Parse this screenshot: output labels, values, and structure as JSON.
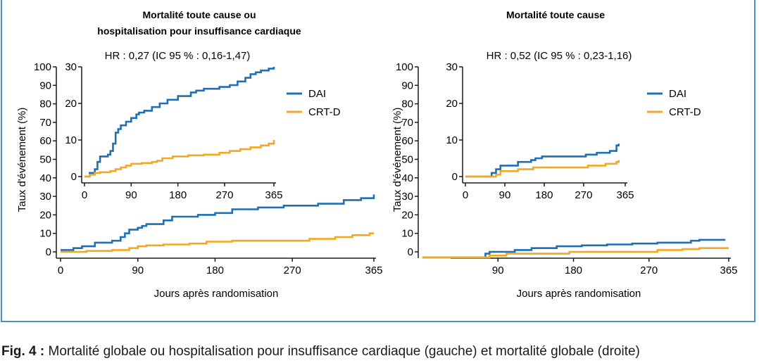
{
  "figure": {
    "caption_label": "Fig. 4 :",
    "caption_text": " Mortalité globale ou hospitalisation pour insuffisance cardiaque (gauche) et mortalité globale (droite)",
    "colors": {
      "DAI": "#1f6fb5",
      "CRT-D": "#f5a623",
      "frame": "#4a90c8"
    }
  },
  "chart_data": [
    {
      "type": "line",
      "step": true,
      "title": "Mortalité toute cause ou\nhospitalisation pour insuffisance cardiaque",
      "xlabel": "Jours après randomisation",
      "ylabel": "Taux d'événement (%)",
      "xlim": [
        0,
        365
      ],
      "ylim": [
        0,
        100
      ],
      "xticks": [
        0,
        90,
        180,
        270,
        365
      ],
      "yticks": [
        0,
        10,
        20,
        30,
        40,
        50,
        60,
        70,
        80,
        90,
        100
      ],
      "legend": [
        {
          "name": "DAI",
          "color": "#1f6fb5"
        },
        {
          "name": "CRT-D",
          "color": "#f5a623"
        }
      ],
      "series": [
        {
          "name": "DAI",
          "color": "#1f6fb5",
          "x": [
            0,
            15,
            25,
            40,
            60,
            70,
            75,
            80,
            90,
            95,
            100,
            120,
            130,
            140,
            160,
            180,
            200,
            230,
            260,
            300,
            330,
            350,
            365
          ],
          "y": [
            1,
            2,
            3,
            5,
            6,
            8,
            10,
            12,
            13,
            14,
            15,
            17,
            19,
            19,
            20,
            21,
            23,
            24,
            25,
            26,
            28,
            29,
            31
          ]
        },
        {
          "name": "CRT-D",
          "color": "#f5a623",
          "x": [
            0,
            30,
            60,
            80,
            90,
            100,
            120,
            150,
            170,
            200,
            250,
            290,
            320,
            340,
            360,
            365
          ],
          "y": [
            0,
            0.5,
            1,
            2,
            3,
            3.5,
            4,
            4.5,
            5.5,
            6,
            6,
            7,
            8,
            9,
            10,
            10
          ]
        }
      ],
      "inset": {
        "annotation": "HR : 0,27 (IC 95 % : 0,16-1,47)",
        "xlim": [
          0,
          365
        ],
        "ylim": [
          0,
          30
        ],
        "xticks": [
          0,
          90,
          180,
          270,
          365
        ],
        "yticks": [
          0,
          10,
          20,
          30
        ],
        "series": [
          {
            "name": "DAI",
            "color": "#1f6fb5",
            "x": [
              0,
              10,
              20,
              25,
              30,
              45,
              50,
              55,
              60,
              65,
              70,
              80,
              90,
              100,
              105,
              115,
              130,
              145,
              160,
              180,
              205,
              215,
              230,
              260,
              280,
              295,
              310,
              320,
              330,
              340,
              355,
              365
            ],
            "y": [
              0,
              1,
              2,
              4,
              5.5,
              6,
              7,
              9,
              12,
              13,
              14,
              15,
              16,
              17,
              17.5,
              18,
              19,
              20,
              21,
              22,
              23,
              23.5,
              24,
              24.5,
              25,
              26,
              27,
              28,
              28.5,
              29,
              29.5,
              30
            ]
          },
          {
            "name": "CRT-D",
            "color": "#f5a623",
            "x": [
              0,
              10,
              20,
              30,
              50,
              60,
              70,
              80,
              90,
              110,
              130,
              140,
              150,
              170,
              200,
              230,
              260,
              280,
              300,
              320,
              340,
              355,
              365
            ],
            "y": [
              0,
              0.5,
              1,
              1.2,
              1.5,
              2,
              2.5,
              3,
              3.5,
              3.7,
              4,
              4.3,
              5,
              5.5,
              5.8,
              6,
              6.5,
              7,
              7.5,
              8,
              8.5,
              9,
              10
            ]
          }
        ]
      }
    },
    {
      "type": "line",
      "step": true,
      "title": "Mortalité toute cause",
      "xlabel": "Jours après randomisation",
      "ylabel": "Taux d'événement (%)",
      "xlim": [
        0,
        365
      ],
      "ylim": [
        0,
        100
      ],
      "xticks": [
        90,
        180,
        270,
        365
      ],
      "yticks": [
        0,
        10,
        20,
        30,
        40,
        50,
        60,
        70,
        80,
        90,
        100
      ],
      "legend": [
        {
          "name": "DAI",
          "color": "#1f6fb5"
        },
        {
          "name": "CRT-D",
          "color": "#f5a623"
        }
      ],
      "series": [
        {
          "name": "DAI",
          "color": "#1f6fb5",
          "x": [
            0,
            70,
            75,
            80,
            90,
            110,
            130,
            160,
            190,
            220,
            250,
            280,
            320,
            330,
            360
          ],
          "y": [
            -3,
            -3,
            -1,
            0,
            0,
            1,
            2,
            3,
            3.5,
            4,
            4.5,
            5,
            6,
            6.5,
            6
          ]
        },
        {
          "name": "CRT-D",
          "color": "#f5a623",
          "x": [
            0,
            70,
            80,
            100,
            150,
            175,
            250,
            280,
            310,
            330,
            365
          ],
          "y": [
            -3,
            -3,
            -2,
            -1,
            -1,
            0,
            0,
            1,
            1.5,
            2,
            2
          ]
        }
      ],
      "inset": {
        "annotation": "HR : 0,52 (IC 95 % : 0,23-1,16)",
        "xlim": [
          0,
          365
        ],
        "ylim": [
          0,
          30
        ],
        "xticks": [
          0,
          90,
          180,
          270,
          365
        ],
        "yticks": [
          0,
          10,
          20,
          30
        ],
        "series": [
          {
            "name": "DAI",
            "color": "#1f6fb5",
            "x": [
              0,
              40,
              60,
              70,
              80,
              120,
              150,
              160,
              175,
              260,
              275,
              300,
              330,
              345,
              350
            ],
            "y": [
              0,
              0,
              1,
              2,
              3,
              4,
              4.5,
              5,
              5.5,
              5.5,
              6,
              6.5,
              7,
              8.5,
              9
            ]
          },
          {
            "name": "CRT-D",
            "color": "#f5a623",
            "x": [
              0,
              55,
              70,
              80,
              120,
              130,
              155,
              260,
              280,
              320,
              345,
              350
            ],
            "y": [
              0,
              0,
              0.5,
              1.5,
              2,
              2,
              2.5,
              2.5,
              3,
              3.5,
              4,
              4.5
            ]
          }
        ]
      }
    }
  ]
}
